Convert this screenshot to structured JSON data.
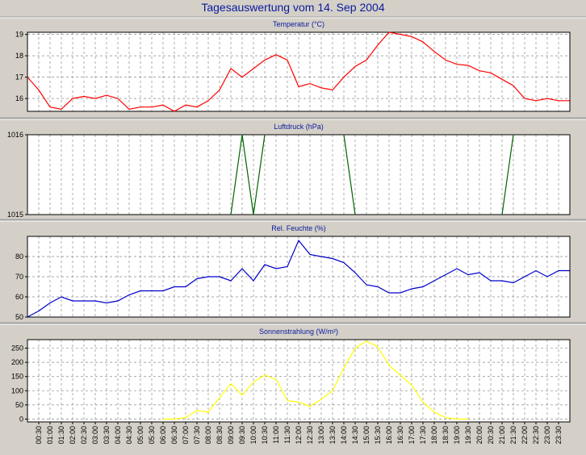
{
  "title": "Tagesauswertung vom 14. Sep 2004",
  "colors": {
    "background": "#d4d0c8",
    "plot_background": "#ffffff",
    "grid": "#8a8a8a",
    "title": "#0a1a9c"
  },
  "time_labels": [
    "00:30",
    "01:00",
    "01:30",
    "02:00",
    "02:30",
    "03:00",
    "03:30",
    "04:00",
    "04:30",
    "05:00",
    "05:30",
    "06:00",
    "06:30",
    "07:00",
    "07:30",
    "08:00",
    "08:30",
    "09:00",
    "09:30",
    "10:00",
    "10:30",
    "11:00",
    "11:30",
    "12:00",
    "12:30",
    "13:00",
    "13:30",
    "14:00",
    "14:30",
    "15:00",
    "15:30",
    "16:00",
    "16:30",
    "17:00",
    "17:30",
    "18:00",
    "18:30",
    "19:00",
    "19:30",
    "20:00",
    "20:30",
    "21:00",
    "21:30",
    "22:00",
    "22:30",
    "23:00",
    "23:30"
  ],
  "chart_data": [
    {
      "type": "line",
      "title": "Temperatur (°C)",
      "color": "#ff0000",
      "grid": true,
      "ylim": [
        15.4,
        19.1
      ],
      "yticks": [
        "16",
        "17",
        "18",
        "19"
      ],
      "x": [
        "00:00",
        "00:30",
        "01:00",
        "01:30",
        "02:00",
        "02:30",
        "03:00",
        "03:30",
        "04:00",
        "04:30",
        "05:00",
        "05:30",
        "06:00",
        "06:30",
        "07:00",
        "07:30",
        "08:00",
        "08:30",
        "09:00",
        "09:30",
        "10:00",
        "10:30",
        "11:00",
        "11:30",
        "12:00",
        "12:30",
        "13:00",
        "13:30",
        "14:00",
        "14:30",
        "15:00",
        "15:30",
        "16:00",
        "16:30",
        "17:00",
        "17:30",
        "18:00",
        "18:30",
        "19:00",
        "19:30",
        "20:00",
        "20:30",
        "21:00",
        "21:30",
        "22:00",
        "22:30",
        "23:00",
        "23:30",
        "23:59"
      ],
      "values": [
        17.0,
        16.4,
        15.6,
        15.5,
        16.0,
        16.1,
        16.0,
        16.15,
        16.0,
        15.5,
        15.6,
        15.6,
        15.7,
        15.4,
        15.7,
        15.6,
        15.9,
        16.4,
        17.4,
        17.0,
        17.4,
        17.8,
        18.05,
        17.8,
        16.55,
        16.7,
        16.5,
        16.4,
        17.0,
        17.5,
        17.8,
        18.5,
        19.1,
        19.0,
        18.9,
        18.65,
        18.2,
        17.8,
        17.6,
        17.55,
        17.3,
        17.2,
        16.9,
        16.6,
        16.0,
        15.9,
        16.0,
        15.9,
        15.9
      ]
    },
    {
      "type": "line",
      "title": "Luftdruck (hPa)",
      "color": "#006400",
      "grid": true,
      "ylim": [
        1015,
        1016
      ],
      "yticks": [
        "1015",
        "1016"
      ],
      "x": [
        "09:00",
        "09:30",
        "10:00",
        "10:30",
        "14:00",
        "14:30",
        "21:00",
        "21:30"
      ],
      "values": [
        1015,
        1016,
        1015,
        1016,
        1016,
        1015,
        1015,
        1016
      ],
      "segments": [
        [
          0,
          4
        ],
        [
          4,
          6
        ],
        [
          6,
          8
        ]
      ]
    },
    {
      "type": "line",
      "title": "Rel. Feuchte (%)",
      "color": "#0000cc",
      "grid": true,
      "ylim": [
        50,
        90
      ],
      "yticks": [
        "50",
        "60",
        "70",
        "80"
      ],
      "x": [
        "00:00",
        "00:30",
        "01:00",
        "01:30",
        "02:00",
        "02:30",
        "03:00",
        "03:30",
        "04:00",
        "04:30",
        "05:00",
        "05:30",
        "06:00",
        "06:30",
        "07:00",
        "07:30",
        "08:00",
        "08:30",
        "09:00",
        "09:30",
        "10:00",
        "10:30",
        "11:00",
        "11:30",
        "12:00",
        "12:30",
        "13:00",
        "13:30",
        "14:00",
        "14:30",
        "15:00",
        "15:30",
        "16:00",
        "16:30",
        "17:00",
        "17:30",
        "18:00",
        "18:30",
        "19:00",
        "19:30",
        "20:00",
        "20:30",
        "21:00",
        "21:30",
        "22:00",
        "22:30",
        "23:00",
        "23:30",
        "23:59"
      ],
      "values": [
        50,
        53,
        57,
        60,
        58,
        58,
        58,
        57,
        58,
        61,
        63,
        63,
        63,
        65,
        65,
        69,
        70,
        70,
        68,
        74,
        68,
        76,
        74,
        75,
        88,
        81,
        80,
        79,
        77,
        72,
        66,
        65,
        62,
        62,
        64,
        65,
        68,
        71,
        74,
        71,
        72,
        68,
        68,
        67,
        70,
        73,
        70,
        73,
        73
      ]
    },
    {
      "type": "line",
      "title": "Sonnenstrahlung (W/m²)",
      "color": "#ffff00",
      "grid": true,
      "ylim": [
        -10,
        280
      ],
      "yticks": [
        "0",
        "50",
        "100",
        "150",
        "200",
        "250"
      ],
      "x": [
        "06:00",
        "06:30",
        "07:00",
        "07:30",
        "08:00",
        "08:30",
        "09:00",
        "09:30",
        "10:00",
        "10:30",
        "11:00",
        "11:30",
        "12:00",
        "12:30",
        "13:00",
        "13:30",
        "14:00",
        "14:30",
        "15:00",
        "15:30",
        "16:00",
        "16:30",
        "17:00",
        "17:30",
        "18:00",
        "18:30",
        "19:00",
        "19:30"
      ],
      "values": [
        0,
        0,
        5,
        30,
        25,
        75,
        125,
        85,
        130,
        155,
        140,
        65,
        60,
        45,
        70,
        100,
        180,
        250,
        275,
        255,
        190,
        155,
        120,
        60,
        25,
        5,
        0,
        0
      ]
    }
  ]
}
